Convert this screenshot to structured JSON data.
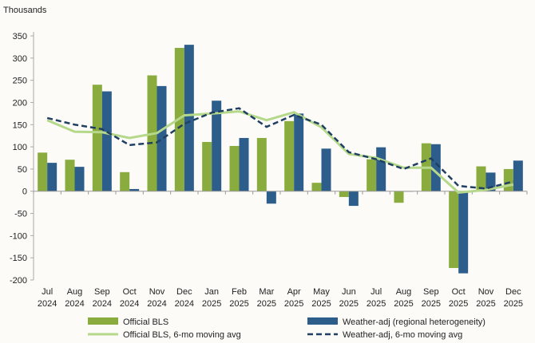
{
  "chart_data": {
    "type": "bar",
    "ylabel": "Thousands",
    "ylim": [
      -200,
      350
    ],
    "yticks": [
      350,
      300,
      250,
      200,
      150,
      100,
      50,
      0,
      -50,
      -100,
      -150,
      -200
    ],
    "grid": false,
    "legend_placement": "bottom",
    "categories": [
      "Jul 2024",
      "Aug 2024",
      "Sep 2024",
      "Oct 2024",
      "Nov 2024",
      "Dec 2024",
      "Jan 2025",
      "Feb 2025",
      "Mar 2025",
      "Apr 2025",
      "May 2025",
      "Jun 2025",
      "Jul 2025",
      "Aug 2025",
      "Sep 2025",
      "Oct 2025",
      "Nov 2025",
      "Dec 2025"
    ],
    "series": [
      {
        "name": "Official BLS",
        "kind": "bar",
        "color": "#8aac3e",
        "values": [
          87,
          71,
          240,
          43,
          261,
          323,
          111,
          102,
          120,
          158,
          19,
          -13,
          72,
          -26,
          108,
          -173,
          56,
          50
        ]
      },
      {
        "name": "Weather-adj (regional heterogeneity)",
        "kind": "bar",
        "color": "#2d5e8b",
        "values": [
          64,
          55,
          225,
          5,
          237,
          330,
          204,
          120,
          -28,
          175,
          96,
          -33,
          99,
          0,
          106,
          -185,
          42,
          69
        ]
      },
      {
        "name": "Official BLS, 6-mo moving avg",
        "kind": "line",
        "color": "#b5d88a",
        "values": [
          160,
          134,
          133,
          120,
          131,
          171,
          175,
          180,
          160,
          178,
          144,
          84,
          75,
          53,
          53,
          -3,
          3,
          15
        ]
      },
      {
        "name": "Weather-adj, 6-mo moving avg",
        "kind": "dashed-line",
        "color": "#1f3f63",
        "values": [
          165,
          150,
          140,
          104,
          110,
          152,
          177,
          187,
          145,
          172,
          150,
          88,
          72,
          50,
          74,
          12,
          6,
          22
        ]
      }
    ]
  }
}
